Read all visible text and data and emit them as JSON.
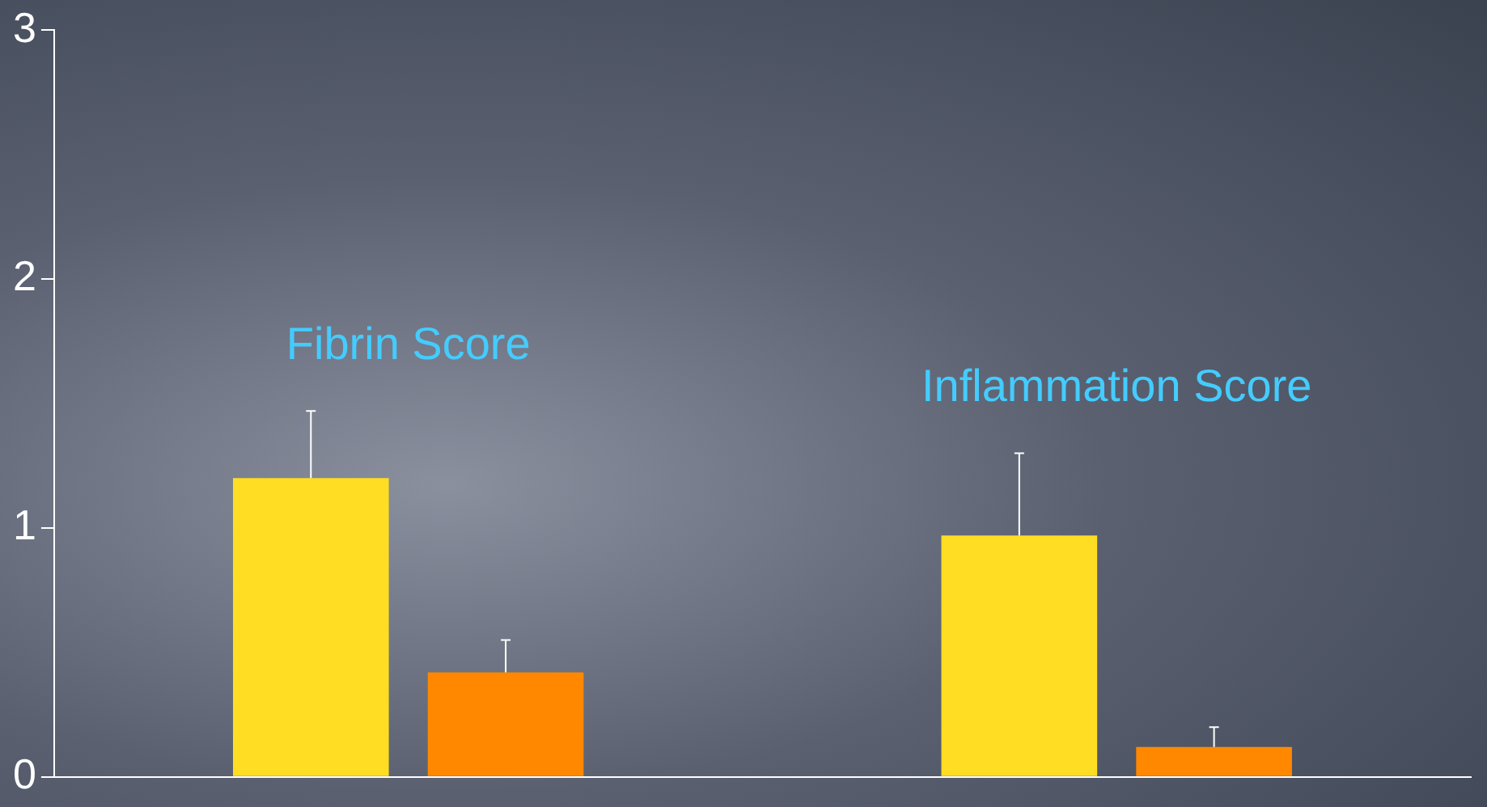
{
  "chart_data": {
    "type": "bar",
    "categories": [
      null,
      null
    ],
    "series": [
      {
        "color": "#ffdd22",
        "values": [
          1.2,
          0.97
        ],
        "errors": [
          [
            1.2,
            1.47
          ],
          [
            0.97,
            1.3
          ]
        ]
      },
      {
        "color": "#ff8800",
        "values": [
          0.42,
          0.12
        ],
        "errors": [
          [
            0.42,
            0.55
          ],
          [
            0.12,
            0.2
          ]
        ]
      }
    ],
    "ylim": [
      0,
      3
    ],
    "yticks": [
      0,
      1,
      2,
      3
    ],
    "grid": false,
    "legend": false,
    "tick_labels": "y",
    "annotations": [
      "Fibrin Score",
      "Inflammation Score"
    ]
  }
}
